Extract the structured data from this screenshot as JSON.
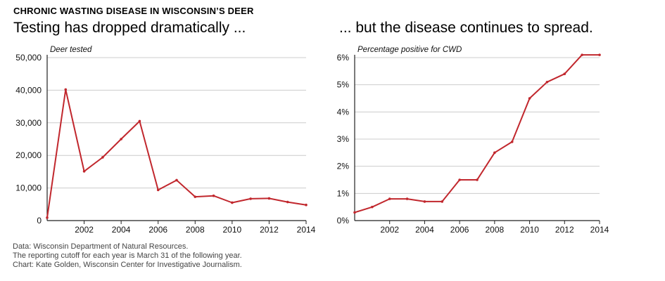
{
  "header": {
    "kicker": "CHRONIC WASTING DISEASE IN WISCONSIN’S DEER",
    "left_headline": "Testing has dropped dramatically ...",
    "right_headline": "... but the disease continues to spread."
  },
  "colors": {
    "line": "#c1272d",
    "grid": "#cccccc",
    "axis": "#222222"
  },
  "notes": [
    "Data: Wisconsin Department of Natural Resources.",
    "The reporting cutoff for each year is March 31 of the following year.",
    "Chart: Kate Golden, Wisconsin Center for Investigative Journalism."
  ],
  "chart_data": [
    {
      "type": "line",
      "title": "",
      "unit_label": "Deer tested",
      "xlabel": "",
      "ylabel": "Deer tested",
      "x": [
        2000,
        2001,
        2002,
        2003,
        2004,
        2005,
        2006,
        2007,
        2008,
        2009,
        2010,
        2011,
        2012,
        2013,
        2014
      ],
      "values": [
        900,
        40200,
        15100,
        19400,
        25000,
        30500,
        9400,
        12400,
        7300,
        7600,
        5500,
        6700,
        6800,
        5700,
        4800
      ],
      "xlim": [
        2000,
        2014
      ],
      "ylim": [
        0,
        50000
      ],
      "yticks": [
        0,
        10000,
        20000,
        30000,
        40000,
        50000
      ],
      "ytick_labels": [
        "0",
        "10,000",
        "20,000",
        "30,000",
        "40,000",
        "50,000"
      ],
      "xticks": [
        2002,
        2004,
        2006,
        2008,
        2010,
        2012,
        2014
      ],
      "xtick_labels": [
        "2002",
        "2004",
        "2006",
        "2008",
        "2010",
        "2012",
        "2014"
      ],
      "grid": true
    },
    {
      "type": "line",
      "title": "",
      "unit_label": "Percentage positive for CWD",
      "xlabel": "",
      "ylabel": "Percentage positive for CWD",
      "x": [
        2000,
        2001,
        2002,
        2003,
        2004,
        2005,
        2006,
        2007,
        2008,
        2009,
        2010,
        2011,
        2012,
        2013,
        2014
      ],
      "values": [
        0.3,
        0.5,
        0.8,
        0.8,
        0.7,
        0.7,
        1.5,
        1.5,
        2.5,
        2.9,
        4.5,
        5.1,
        5.4,
        6.1,
        6.1
      ],
      "xlim": [
        2000,
        2014
      ],
      "ylim": [
        0,
        6
      ],
      "yticks": [
        0,
        1,
        2,
        3,
        4,
        5,
        6
      ],
      "ytick_labels": [
        "0%",
        "1%",
        "2%",
        "3%",
        "4%",
        "5%",
        "6%"
      ],
      "xticks": [
        2002,
        2004,
        2006,
        2008,
        2010,
        2012,
        2014
      ],
      "xtick_labels": [
        "2002",
        "2004",
        "2006",
        "2008",
        "2010",
        "2012",
        "2014"
      ],
      "grid": true
    }
  ]
}
